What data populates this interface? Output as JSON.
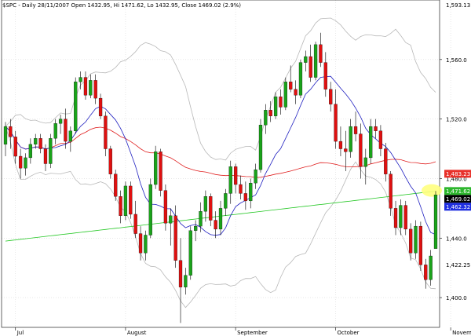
{
  "header": {
    "text": "$SPC - Daily 28/11/2007 Open 1432.95, Hi 1471.62, Lo 1432.95, Close 1469.02 (2.9%)"
  },
  "chart_data": {
    "type": "candlestick",
    "symbol": "$SPC",
    "ylim": [
      1380,
      1600
    ],
    "y_ticks": [
      {
        "value": 1400,
        "label": "1,400.0"
      },
      {
        "value": 1440,
        "label": "1,440.0"
      },
      {
        "value": 1480,
        "label": "1,480.0"
      },
      {
        "value": 1520,
        "label": "1,520.0"
      },
      {
        "value": 1560,
        "label": "1,560.0"
      }
    ],
    "top_label": {
      "value": 1593.1,
      "label": "1,593.13"
    },
    "extra_labels": [
      {
        "value": 1422.25,
        "label": "1,422.25"
      }
    ],
    "months": [
      {
        "label": "Jul",
        "day": 2
      },
      {
        "label": "August",
        "day": 24
      },
      {
        "label": "September",
        "day": 46
      },
      {
        "label": "October",
        "day": 66
      },
      {
        "label": "November",
        "day": 89
      }
    ],
    "candles": [
      [
        1503,
        1518,
        1495,
        1515
      ],
      [
        1515,
        1520,
        1500,
        1508
      ],
      [
        1508,
        1512,
        1490,
        1495
      ],
      [
        1495,
        1500,
        1480,
        1487
      ],
      [
        1487,
        1497,
        1482,
        1494
      ],
      [
        1494,
        1507,
        1490,
        1503
      ],
      [
        1503,
        1510,
        1500,
        1507
      ],
      [
        1507,
        1510,
        1497,
        1500
      ],
      [
        1500,
        1503,
        1485,
        1490
      ],
      [
        1490,
        1510,
        1487,
        1507
      ],
      [
        1507,
        1520,
        1503,
        1517
      ],
      [
        1517,
        1523,
        1510,
        1520
      ],
      [
        1520,
        1527,
        1500,
        1505
      ],
      [
        1505,
        1515,
        1498,
        1512
      ],
      [
        1512,
        1548,
        1510,
        1545
      ],
      [
        1545,
        1552,
        1540,
        1548
      ],
      [
        1548,
        1552,
        1533,
        1536
      ],
      [
        1536,
        1550,
        1534,
        1546
      ],
      [
        1546,
        1550,
        1530,
        1534
      ],
      [
        1534,
        1537,
        1520,
        1522
      ],
      [
        1522,
        1525,
        1495,
        1500
      ],
      [
        1500,
        1502,
        1480,
        1483
      ],
      [
        1483,
        1486,
        1465,
        1468
      ],
      [
        1468,
        1472,
        1450,
        1455
      ],
      [
        1455,
        1478,
        1452,
        1475
      ],
      [
        1475,
        1478,
        1453,
        1456
      ],
      [
        1456,
        1465,
        1440,
        1443
      ],
      [
        1443,
        1448,
        1425,
        1430
      ],
      [
        1430,
        1445,
        1425,
        1442
      ],
      [
        1442,
        1480,
        1440,
        1476
      ],
      [
        1476,
        1502,
        1473,
        1498
      ],
      [
        1498,
        1500,
        1468,
        1472
      ],
      [
        1472,
        1476,
        1445,
        1450
      ],
      [
        1450,
        1460,
        1435,
        1455
      ],
      [
        1455,
        1462,
        1420,
        1425
      ],
      [
        1425,
        1440,
        1383,
        1407
      ],
      [
        1407,
        1420,
        1402,
        1415
      ],
      [
        1415,
        1448,
        1412,
        1445
      ],
      [
        1445,
        1452,
        1438,
        1448
      ],
      [
        1448,
        1464,
        1444,
        1458
      ],
      [
        1458,
        1472,
        1451,
        1468
      ],
      [
        1468,
        1470,
        1448,
        1452
      ],
      [
        1452,
        1458,
        1440,
        1446
      ],
      [
        1446,
        1465,
        1442,
        1460
      ],
      [
        1460,
        1473,
        1455,
        1470
      ],
      [
        1470,
        1492,
        1463,
        1488
      ],
      [
        1488,
        1490,
        1470,
        1476
      ],
      [
        1476,
        1482,
        1466,
        1470
      ],
      [
        1470,
        1478,
        1459,
        1465
      ],
      [
        1465,
        1480,
        1460,
        1477
      ],
      [
        1477,
        1490,
        1473,
        1486
      ],
      [
        1486,
        1520,
        1484,
        1516
      ],
      [
        1516,
        1530,
        1510,
        1526
      ],
      [
        1526,
        1532,
        1518,
        1522
      ],
      [
        1522,
        1538,
        1520,
        1535
      ],
      [
        1535,
        1540,
        1523,
        1528
      ],
      [
        1528,
        1548,
        1526,
        1545
      ],
      [
        1545,
        1556,
        1538,
        1540
      ],
      [
        1540,
        1546,
        1530,
        1536
      ],
      [
        1536,
        1560,
        1534,
        1558
      ],
      [
        1558,
        1566,
        1552,
        1562
      ],
      [
        1562,
        1570,
        1545,
        1548
      ],
      [
        1548,
        1572,
        1546,
        1570
      ],
      [
        1570,
        1578,
        1555,
        1558
      ],
      [
        1558,
        1565,
        1535,
        1540
      ],
      [
        1540,
        1545,
        1525,
        1530
      ],
      [
        1530,
        1540,
        1500,
        1505
      ],
      [
        1505,
        1515,
        1495,
        1500
      ],
      [
        1500,
        1512,
        1485,
        1498
      ],
      [
        1498,
        1520,
        1494,
        1515
      ],
      [
        1515,
        1525,
        1505,
        1510
      ],
      [
        1510,
        1517,
        1480,
        1488
      ],
      [
        1488,
        1500,
        1476,
        1494
      ],
      [
        1494,
        1520,
        1490,
        1515
      ],
      [
        1515,
        1520,
        1507,
        1512
      ],
      [
        1512,
        1516,
        1495,
        1500
      ],
      [
        1500,
        1504,
        1478,
        1483
      ],
      [
        1483,
        1485,
        1455,
        1460
      ],
      [
        1460,
        1465,
        1442,
        1447
      ],
      [
        1447,
        1466,
        1442,
        1462
      ],
      [
        1462,
        1465,
        1442,
        1446
      ],
      [
        1446,
        1450,
        1425,
        1430
      ],
      [
        1430,
        1452,
        1426,
        1448
      ],
      [
        1448,
        1451,
        1418,
        1422
      ],
      [
        1422,
        1426,
        1406,
        1412
      ],
      [
        1412,
        1432,
        1408,
        1428
      ],
      [
        1432.95,
        1471.62,
        1432.95,
        1469.02
      ]
    ]
  },
  "price_boxes": [
    {
      "label": "1,483.23",
      "value": 1483.23,
      "bg": "#e8312a",
      "fg": "#ffffff"
    },
    {
      "label": "1,471.62",
      "value": 1471.62,
      "bg": "#2db62d",
      "fg": "#ffffff"
    },
    {
      "label": "1,469.02",
      "value": 1469.02,
      "bg": "#000000",
      "fg": "#ffffff"
    },
    {
      "label": "1,462.32",
      "value": 1462.32,
      "bg": "#1f2fe0",
      "fg": "#ffffff"
    }
  ],
  "colors": {
    "up": "#1aa31a",
    "down": "#e01010",
    "sma_fast": "#2020c0",
    "sma_mid": "#e02020",
    "sma_slow": "#22c722",
    "band": "#b8b8b8",
    "highlight": "#ffff80"
  }
}
